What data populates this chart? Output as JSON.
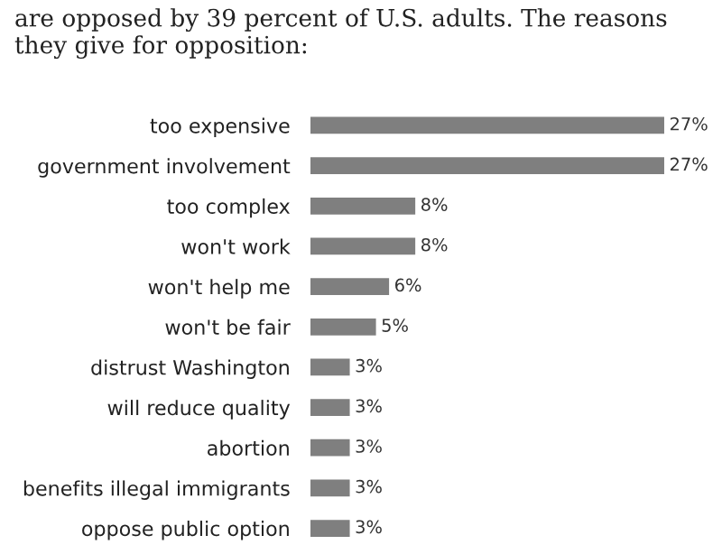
{
  "chart_data": {
    "type": "bar",
    "orientation": "horizontal",
    "title": "are opposed by 39 percent of U.S. adults. The reasons they give for opposition:",
    "categories": [
      "too expensive",
      "government involvement",
      "too complex",
      "won't work",
      "won't help me",
      "won't be fair",
      "distrust Washington",
      "will reduce quality",
      "abortion",
      "benefits illegal immigrants",
      "oppose public option"
    ],
    "values": [
      27,
      27,
      8,
      8,
      6,
      5,
      3,
      3,
      3,
      3,
      3
    ],
    "value_labels": [
      "27%",
      "27%",
      "8%",
      "8%",
      "6%",
      "5%",
      "3%",
      "3%",
      "3%",
      "3%",
      "3%"
    ],
    "color": "#7f7f7f",
    "grid": false,
    "legend": false
  }
}
